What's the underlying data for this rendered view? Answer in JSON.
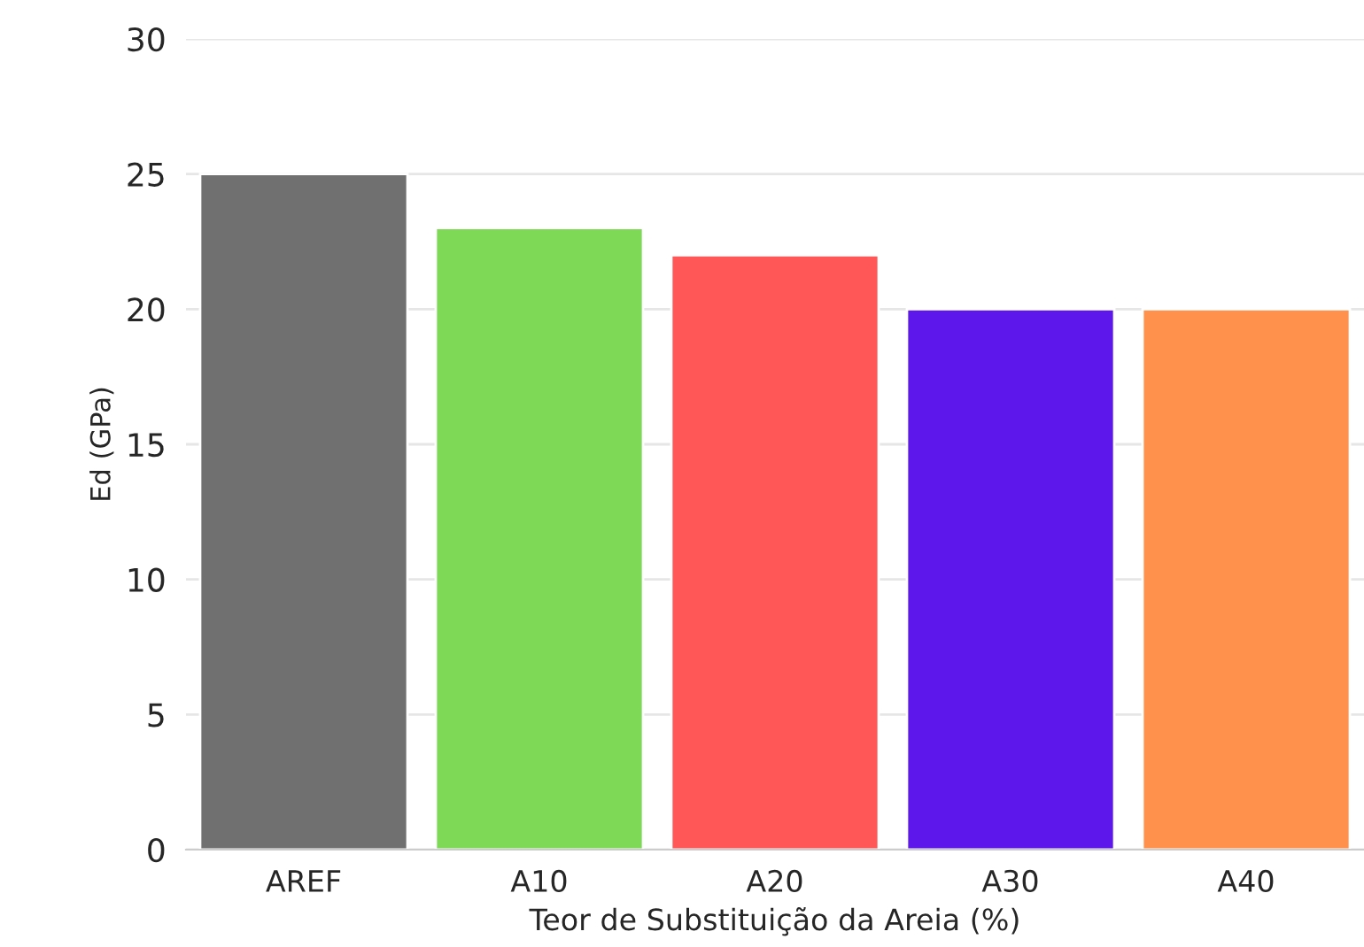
{
  "chart_data": {
    "type": "bar",
    "xlabel": "Teor de Substituição da Areia (%)",
    "ylabel": "Ed (GPa)",
    "categories": [
      "AREF",
      "A10",
      "A20",
      "A30",
      "A40"
    ],
    "values": [
      25,
      23,
      22,
      20,
      20
    ],
    "colors": [
      "#707070",
      "#7ed957",
      "#ff5757",
      "#5e17eb",
      "#ff914d"
    ],
    "ylim": [
      0,
      30
    ],
    "yticks": [
      0,
      5,
      10,
      15,
      20,
      25,
      30
    ],
    "grid": "y"
  }
}
